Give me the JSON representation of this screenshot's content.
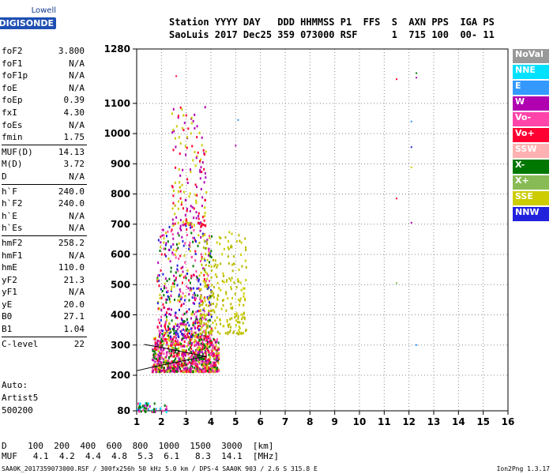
{
  "logo": {
    "line1": "Lowell",
    "line2": "DIGISONDE"
  },
  "header": {
    "line1": "Station YYYY DAY   DDD HHMMSS P1  FFS  S  AXN PPS  IGA PS",
    "line2": "SaoLuis 2017 Dec25 359 073000 RSF      1  715 100  00- 11"
  },
  "params": [
    {
      "name": "foF2",
      "value": "3.800"
    },
    {
      "name": "foF1",
      "value": "N/A"
    },
    {
      "name": "foF1p",
      "value": "N/A"
    },
    {
      "name": "foE",
      "value": "N/A"
    },
    {
      "name": "foEp",
      "value": "0.39"
    },
    {
      "name": "fxI",
      "value": "4.30"
    },
    {
      "name": "foEs",
      "value": "N/A"
    },
    {
      "name": "fmin",
      "value": "1.75"
    },
    {
      "name": "MUF(D)",
      "value": "14.13",
      "sep": true
    },
    {
      "name": "M(D)",
      "value": "3.72"
    },
    {
      "name": "D",
      "value": "N/A"
    },
    {
      "name": "h`F",
      "value": "240.0",
      "sep": true
    },
    {
      "name": "h`F2",
      "value": "240.0"
    },
    {
      "name": "h`E",
      "value": "N/A"
    },
    {
      "name": "h`Es",
      "value": "N/A"
    },
    {
      "name": "hmF2",
      "value": "258.2",
      "sep": true
    },
    {
      "name": "hmF1",
      "value": "N/A"
    },
    {
      "name": "hmE",
      "value": "110.0"
    },
    {
      "name": "yF2",
      "value": "21.3"
    },
    {
      "name": "yF1",
      "value": "N/A"
    },
    {
      "name": "yE",
      "value": "20.0"
    },
    {
      "name": "B0",
      "value": "27.1"
    },
    {
      "name": "B1",
      "value": "1.04"
    },
    {
      "name": "C-level",
      "value": "22",
      "sep": true
    }
  ],
  "auto": {
    "line1": "Auto:",
    "line2": "Artist5",
    "line3": "500200"
  },
  "muf_table": {
    "row1": "D    100  200  400  600  800  1000  1500  3000  [km]",
    "row2": "MUF   4.1  4.2  4.4  4.8  5.3  6.1   8.3  14.1  [MHz]"
  },
  "footer": {
    "left": "SAA0K_2017359073000.RSF / 300fx256h 50 kHz 5.0 km / DPS-4 SAA0K 903 / 2.6 S 315.8 E",
    "right": "Ion2Png 1.3.17"
  },
  "legend": [
    {
      "label": "NoVal",
      "color": "#999999"
    },
    {
      "label": "NNE",
      "color": "#00e0ff"
    },
    {
      "label": "E",
      "color": "#3399ff"
    },
    {
      "label": "W",
      "color": "#b000b0"
    },
    {
      "label": "Vo-",
      "color": "#ff44aa"
    },
    {
      "label": "Vo+",
      "color": "#ff0033"
    },
    {
      "label": "SSW",
      "color": "#ffb0b0"
    },
    {
      "label": "X-",
      "color": "#007700"
    },
    {
      "label": "X+",
      "color": "#88bb55"
    },
    {
      "label": "SSE",
      "color": "#cccc00"
    },
    {
      "label": "NNW",
      "color": "#2222dd"
    }
  ],
  "chart_data": {
    "type": "scatter",
    "title": "",
    "xlabel": "",
    "ylabel": "",
    "xlim": [
      1,
      16
    ],
    "ylim": [
      80,
      1280
    ],
    "x_ticks": [
      1,
      2,
      3,
      4,
      5,
      6,
      7,
      8,
      9,
      10,
      11,
      12,
      13,
      14,
      15,
      16
    ],
    "y_ticks": [
      80,
      200,
      300,
      400,
      500,
      600,
      700,
      800,
      900,
      1000,
      1100,
      1280
    ],
    "grid": true,
    "clusters": [
      {
        "name": "F-trace echoes",
        "x_range": [
          1.6,
          4.3
        ],
        "y_range": [
          215,
          330
        ],
        "density": 900,
        "colors": [
          "#ff0033",
          "#b000b0",
          "#ff44aa",
          "#cccc00",
          "#007700"
        ]
      },
      {
        "name": "Spread-F",
        "x_range": [
          1.8,
          4.0
        ],
        "y_range": [
          330,
          700
        ],
        "density": 500,
        "colors": [
          "#b000b0",
          "#ff0033",
          "#cccc00",
          "#ff44aa",
          "#007700",
          "#2222dd"
        ]
      },
      {
        "name": "Spread-F upper",
        "x_range": [
          2.4,
          3.8
        ],
        "y_range": [
          700,
          1100
        ],
        "density": 160,
        "colors": [
          "#b000b0",
          "#cccc00",
          "#ff0033"
        ]
      },
      {
        "name": "SSE diffuse",
        "x_range": [
          3.5,
          5.4
        ],
        "y_range": [
          340,
          680
        ],
        "density": 250,
        "colors": [
          "#cccc00",
          "#b8b800"
        ]
      },
      {
        "name": "Low echoes",
        "x_range": [
          1.0,
          2.2
        ],
        "y_range": [
          80,
          110
        ],
        "density": 50,
        "colors": [
          "#007700",
          "#00e0ff",
          "#ff44aa",
          "#b000b0"
        ]
      }
    ],
    "scattered_points": [
      {
        "x": 2.6,
        "y": 1190,
        "color": "#ff0033"
      },
      {
        "x": 5.1,
        "y": 1045,
        "color": "#3399ff"
      },
      {
        "x": 5.0,
        "y": 960,
        "color": "#b000b0"
      },
      {
        "x": 11.5,
        "y": 1180,
        "color": "#ff0033"
      },
      {
        "x": 12.3,
        "y": 1200,
        "color": "#007700"
      },
      {
        "x": 12.3,
        "y": 1185,
        "color": "#b000b0"
      },
      {
        "x": 12.1,
        "y": 1040,
        "color": "#3399ff"
      },
      {
        "x": 12.1,
        "y": 955,
        "color": "#2222dd"
      },
      {
        "x": 12.1,
        "y": 888,
        "color": "#cccc00"
      },
      {
        "x": 11.5,
        "y": 785,
        "color": "#ff0033"
      },
      {
        "x": 12.1,
        "y": 705,
        "color": "#b000b0"
      },
      {
        "x": 11.5,
        "y": 505,
        "color": "#88bb55"
      },
      {
        "x": 12.3,
        "y": 300,
        "color": "#3399ff"
      }
    ],
    "profile_line": [
      [
        1.0,
        215
      ],
      [
        1.8,
        230
      ],
      [
        2.6,
        243
      ],
      [
        3.3,
        255
      ],
      [
        3.8,
        262
      ],
      [
        3.0,
        275
      ],
      [
        2.0,
        292
      ],
      [
        1.3,
        302
      ]
    ]
  }
}
